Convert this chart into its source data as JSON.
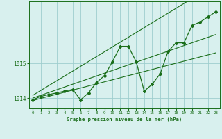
{
  "xlabel": "Graphe pression niveau de la mer (hPa)",
  "x_values": [
    0,
    1,
    2,
    3,
    4,
    5,
    6,
    7,
    8,
    9,
    10,
    11,
    12,
    13,
    14,
    15,
    16,
    17,
    18,
    19,
    20,
    21,
    22,
    23
  ],
  "main_data": [
    1013.95,
    1014.05,
    1014.1,
    1014.15,
    1014.2,
    1014.25,
    1013.95,
    1014.15,
    1014.45,
    1014.65,
    1015.05,
    1015.5,
    1015.5,
    1015.05,
    1014.2,
    1014.4,
    1014.7,
    1015.35,
    1015.6,
    1015.6,
    1016.1,
    1016.2,
    1016.35,
    1016.5
  ],
  "trend_low": [
    1013.93,
    1013.99,
    1014.05,
    1014.11,
    1014.17,
    1014.23,
    1014.29,
    1014.35,
    1014.41,
    1014.47,
    1014.53,
    1014.59,
    1014.65,
    1014.71,
    1014.77,
    1014.83,
    1014.89,
    1014.95,
    1015.01,
    1015.07,
    1015.13,
    1015.19,
    1015.25,
    1015.31
  ],
  "trend_high": [
    1014.0,
    1014.08,
    1014.16,
    1014.24,
    1014.32,
    1014.4,
    1014.48,
    1014.56,
    1014.64,
    1014.72,
    1014.8,
    1014.88,
    1014.96,
    1015.04,
    1015.12,
    1015.2,
    1015.28,
    1015.36,
    1015.44,
    1015.52,
    1015.6,
    1015.68,
    1015.76,
    1015.84
  ],
  "trend_outer_high": [
    1014.08,
    1014.22,
    1014.36,
    1014.5,
    1014.64,
    1014.78,
    1014.92,
    1015.06,
    1015.2,
    1015.34,
    1015.48,
    1015.62,
    1015.76,
    1015.9,
    1016.04,
    1016.18,
    1016.32,
    1016.46,
    1016.6,
    1016.74,
    1016.88,
    1017.02,
    1017.16,
    1017.3
  ],
  "ylim": [
    1013.7,
    1016.8
  ],
  "ytick_vals": [
    1014,
    1015
  ],
  "background_color": "#d8f0ee",
  "grid_color": "#9ecece",
  "line_color": "#1a6e1a",
  "text_color": "#1a6e1a",
  "marker": "D",
  "markersize": 2.0,
  "linewidth": 0.9,
  "trend_linewidth": 0.8
}
